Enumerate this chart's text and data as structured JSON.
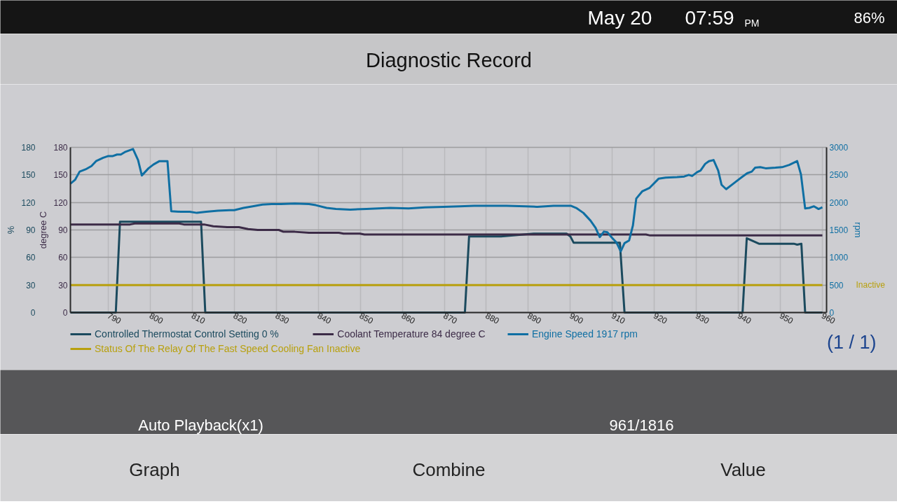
{
  "chart_data": {
    "type": "line",
    "title": "Diagnostic Record",
    "ylabel": "%",
    "y3label": "degree C",
    "y2label": "rpm",
    "xlim": [
      781,
      961
    ],
    "xticks": [
      790,
      800,
      810,
      820,
      830,
      840,
      850,
      860,
      870,
      880,
      890,
      900,
      910,
      920,
      930,
      940,
      950,
      960
    ],
    "ylim": [
      0,
      180
    ],
    "yticks": [
      0,
      30,
      60,
      90,
      120,
      150,
      180
    ],
    "y3lim": [
      0,
      180
    ],
    "y3ticks": [
      0,
      30,
      60,
      90,
      120,
      150,
      180
    ],
    "y2lim": [
      0,
      3000
    ],
    "y2ticks": [
      0,
      500,
      1000,
      1500,
      2000,
      2500,
      3000
    ],
    "grid": true,
    "legend": "bottom left",
    "series": [
      {
        "name": "Controlled Thermostat Control Setting 0 %",
        "color": "#1b4a5e",
        "x": [
          781,
          791.8,
          792.8,
          812.1,
          813.1,
          874.9,
          875.9,
          883.5,
          891.3,
          899.1,
          900,
          900.8,
          911.8,
          912.9,
          941,
          942,
          944.9,
          953.2,
          954,
          955,
          955.9,
          960
        ],
        "values": [
          0,
          0,
          99,
          99,
          0,
          0,
          83,
          83,
          86,
          86,
          83,
          76,
          76,
          0,
          0,
          81,
          75,
          75,
          74,
          75,
          0,
          0
        ]
      },
      {
        "name": "Coolant Temperature 84 degree C",
        "color": "#3c2b47",
        "axis": "y3",
        "x": [
          781,
          795.2,
          796.3,
          806.9,
          808,
          812.8,
          815,
          818.3,
          821.1,
          823.3,
          825.6,
          830.6,
          831.7,
          834.4,
          837.8,
          844.9,
          846,
          849.9,
          851,
          918,
          919,
          960
        ],
        "values": [
          96,
          96,
          97,
          97,
          96,
          96,
          94,
          93,
          93,
          91,
          90,
          90,
          88,
          88,
          87,
          87,
          86,
          86,
          85,
          85,
          84,
          84
        ]
      },
      {
        "name": "Engine Speed 1917 rpm",
        "color": "#0f6fa3",
        "axis": "y2",
        "x": [
          781,
          782.1,
          783.2,
          784.6,
          786,
          787.1,
          788.8,
          789.9,
          791,
          792.1,
          793,
          794.1,
          795.9,
          797.1,
          798,
          799.6,
          800.8,
          802.2,
          804.1,
          805,
          807.2,
          809.4,
          811.1,
          813.3,
          816.1,
          818.9,
          820,
          822.2,
          824.4,
          826.7,
          828.9,
          831.1,
          834.4,
          837.8,
          839.4,
          842,
          844.2,
          847.6,
          851.5,
          857.1,
          861.5,
          865.4,
          869.8,
          873.7,
          877.1,
          881,
          884.8,
          889.3,
          892.1,
          896,
          900.1,
          901.4,
          903.1,
          904.8,
          906,
          907,
          908,
          908.8,
          909.9,
          911,
          912,
          912.9,
          914,
          914.9,
          915.7,
          917.1,
          918.8,
          921,
          922.7,
          925.4,
          927.1,
          928.2,
          929,
          930.2,
          931,
          932.1,
          933,
          934.1,
          935.2,
          936,
          937.1,
          938.8,
          941,
          942.1,
          943.2,
          944,
          945.2,
          946.5,
          948.8,
          950.4,
          952.1,
          954,
          954.9,
          955.9,
          956.9,
          958,
          959.1,
          960
        ],
        "values": [
          2340,
          2410,
          2560,
          2600,
          2660,
          2750,
          2810,
          2840,
          2840,
          2870,
          2870,
          2920,
          2970,
          2770,
          2490,
          2620,
          2690,
          2750,
          2750,
          1840,
          1830,
          1830,
          1810,
          1830,
          1850,
          1860,
          1860,
          1900,
          1930,
          1960,
          1970,
          1970,
          1980,
          1970,
          1950,
          1900,
          1880,
          1870,
          1880,
          1900,
          1890,
          1910,
          1920,
          1930,
          1940,
          1940,
          1940,
          1930,
          1920,
          1940,
          1940,
          1900,
          1810,
          1670,
          1540,
          1370,
          1470,
          1460,
          1360,
          1270,
          1110,
          1260,
          1310,
          1580,
          2070,
          2200,
          2260,
          2430,
          2450,
          2460,
          2470,
          2500,
          2480,
          2550,
          2580,
          2700,
          2750,
          2770,
          2580,
          2320,
          2240,
          2340,
          2470,
          2530,
          2560,
          2630,
          2640,
          2620,
          2630,
          2640,
          2680,
          2750,
          2510,
          1890,
          1900,
          1930,
          1880,
          1910
        ]
      },
      {
        "name": "Status Of The Relay Of The Fast Speed Cooling Fan Inactive",
        "color": "#b8a00e",
        "x": [
          781,
          960
        ],
        "values": [
          30,
          30
        ]
      }
    ],
    "annotations": [
      "May 20",
      "07:59",
      "PM",
      "86%",
      "Inactive",
      "(1 / 1)",
      "Auto Playback(x1)",
      "961/1816",
      "Graph",
      "Combine",
      "Value"
    ]
  }
}
